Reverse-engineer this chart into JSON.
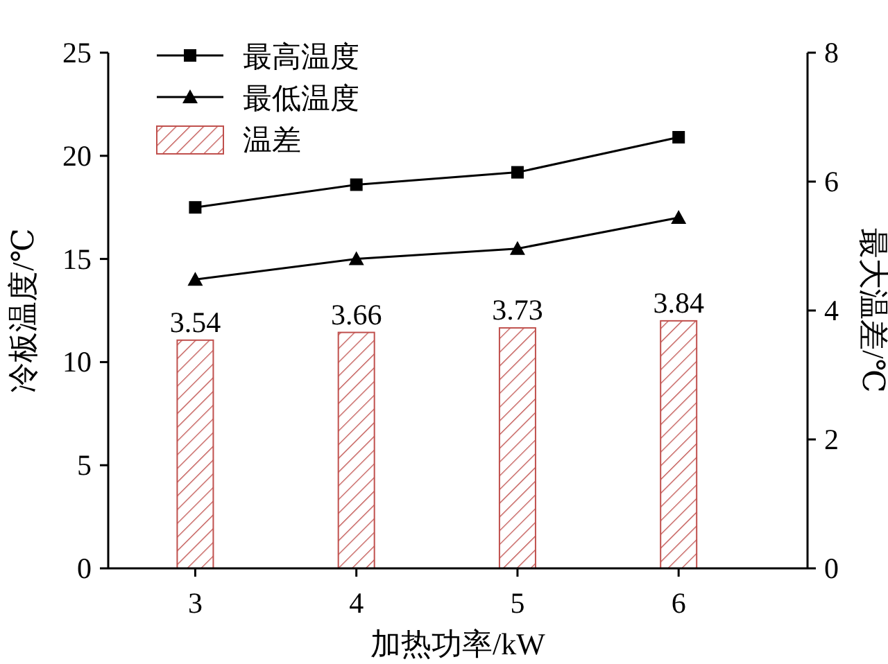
{
  "chart_data": {
    "type": "line",
    "xlabel": "加热功率/kW",
    "ylabel": "冷板温度/℃",
    "y2label": "最大温差/℃",
    "categories": [
      "3",
      "4",
      "5",
      "6"
    ],
    "ylim": [
      0,
      25
    ],
    "yticks": [
      0,
      5,
      10,
      15,
      20,
      25
    ],
    "y2lim": [
      0,
      8
    ],
    "y2ticks": [
      0,
      2,
      4,
      6,
      8
    ],
    "legend": "top left",
    "grid": false,
    "line_style": "solid",
    "series": [
      {
        "name": "最高温度",
        "color": "#000000",
        "marker": "square",
        "values": [
          17.5,
          18.6,
          19.2,
          20.9
        ]
      },
      {
        "name": "最低温度",
        "color": "#000000",
        "marker": "triangle",
        "values": [
          14.0,
          15.0,
          15.5,
          17.0
        ]
      },
      {
        "name": "温差",
        "type": "bar",
        "axis": "y2",
        "color": "#c0504d",
        "values": [
          3.54,
          3.66,
          3.73,
          3.84
        ],
        "value_labels": [
          "3.54",
          "3.66",
          "3.73",
          "3.84"
        ]
      }
    ]
  }
}
